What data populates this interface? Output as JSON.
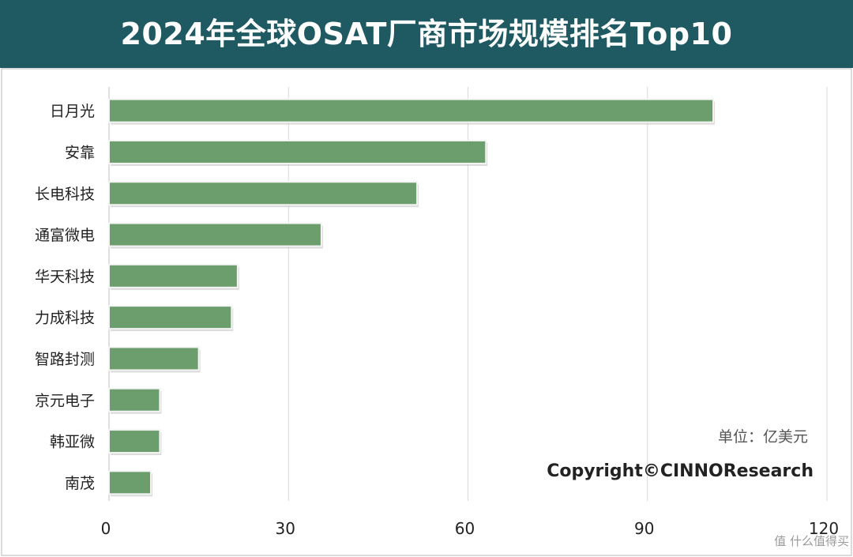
{
  "chart_data": {
    "type": "bar",
    "orientation": "horizontal",
    "title": "2024年全球OSAT厂商市场规模排名Top10",
    "categories": [
      "日月光",
      "安靠",
      "长电科技",
      "通富微电",
      "华天科技",
      "力成科技",
      "智路封测",
      "京元电子",
      "韩亚微",
      "南茂"
    ],
    "values": [
      101,
      63,
      51.5,
      35.5,
      21.5,
      20.5,
      15,
      8.5,
      8.5,
      7
    ],
    "xlim": [
      0,
      120
    ],
    "xticks": [
      0,
      30,
      60,
      90,
      120
    ],
    "grid": true,
    "bar_color": "#6b9e6c",
    "unit_note": "单位：亿美元",
    "copyright": "Copyright©CINNOResearch"
  },
  "watermark": "值 什么值得买"
}
